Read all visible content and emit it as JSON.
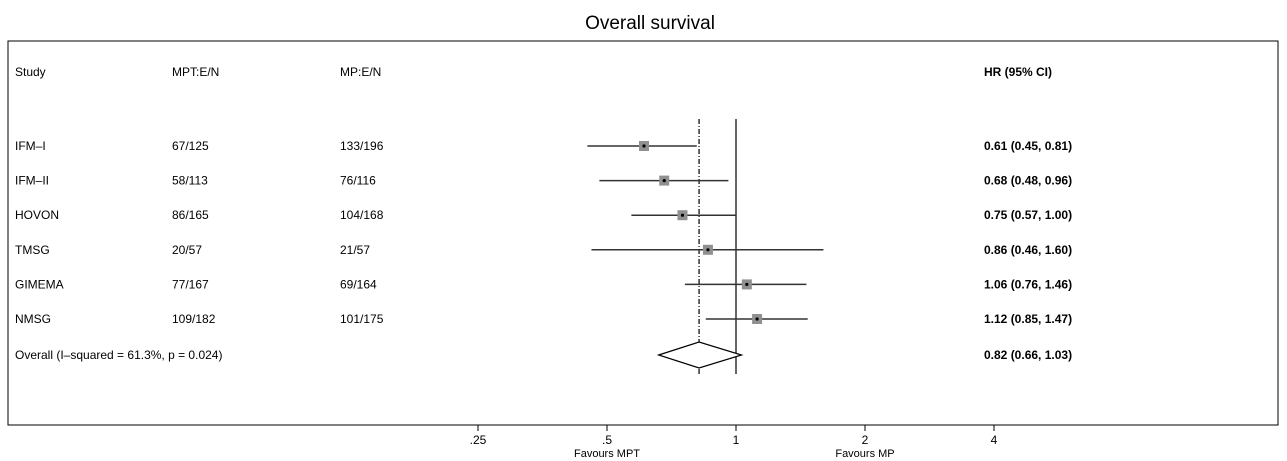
{
  "chart_data": {
    "type": "forest",
    "title": "Overall survival",
    "columns": {
      "study": "Study",
      "mpt": "MPT:E/N",
      "mp": "MP:E/N",
      "hr": "HR (95% CI)"
    },
    "rows": [
      {
        "study": "IFM–I",
        "mpt": "67/125",
        "mp": "133/196",
        "hr": 0.61,
        "lo": 0.45,
        "hi": 0.81,
        "hr_text": "0.61 (0.45, 0.81)"
      },
      {
        "study": "IFM–II",
        "mpt": "58/113",
        "mp": "76/116",
        "hr": 0.68,
        "lo": 0.48,
        "hi": 0.96,
        "hr_text": "0.68 (0.48, 0.96)"
      },
      {
        "study": "HOVON",
        "mpt": "86/165",
        "mp": "104/168",
        "hr": 0.75,
        "lo": 0.57,
        "hi": 1.0,
        "hr_text": "0.75 (0.57, 1.00)"
      },
      {
        "study": "TMSG",
        "mpt": "20/57",
        "mp": "21/57",
        "hr": 0.86,
        "lo": 0.46,
        "hi": 1.6,
        "hr_text": "0.86 (0.46, 1.60)"
      },
      {
        "study": "GIMEMA",
        "mpt": "77/167",
        "mp": "69/164",
        "hr": 1.06,
        "lo": 0.76,
        "hi": 1.46,
        "hr_text": "1.06 (0.76, 1.46)"
      },
      {
        "study": "NMSG",
        "mpt": "109/182",
        "mp": "101/175",
        "hr": 1.12,
        "lo": 0.85,
        "hi": 1.47,
        "hr_text": "1.12 (0.85, 1.47)"
      }
    ],
    "overall": {
      "label": "Overall  (I–squared = 61.3%, p = 0.024)",
      "hr": 0.82,
      "lo": 0.66,
      "hi": 1.03,
      "hr_text": "0.82 (0.66, 1.03)"
    },
    "x_axis": {
      "scale": "log",
      "ticks": [
        {
          "value": 0.25,
          "label": ".25"
        },
        {
          "value": 0.5,
          "label": ".5"
        },
        {
          "value": 1,
          "label": "1"
        },
        {
          "value": 2,
          "label": "2"
        },
        {
          "value": 4,
          "label": "4"
        }
      ],
      "reference_line": 1,
      "left_label": "Favours MPT",
      "right_label": "Favours MP"
    },
    "colors": {
      "marker_box": "#909090",
      "line": "#333333",
      "frame": "#000000"
    }
  }
}
